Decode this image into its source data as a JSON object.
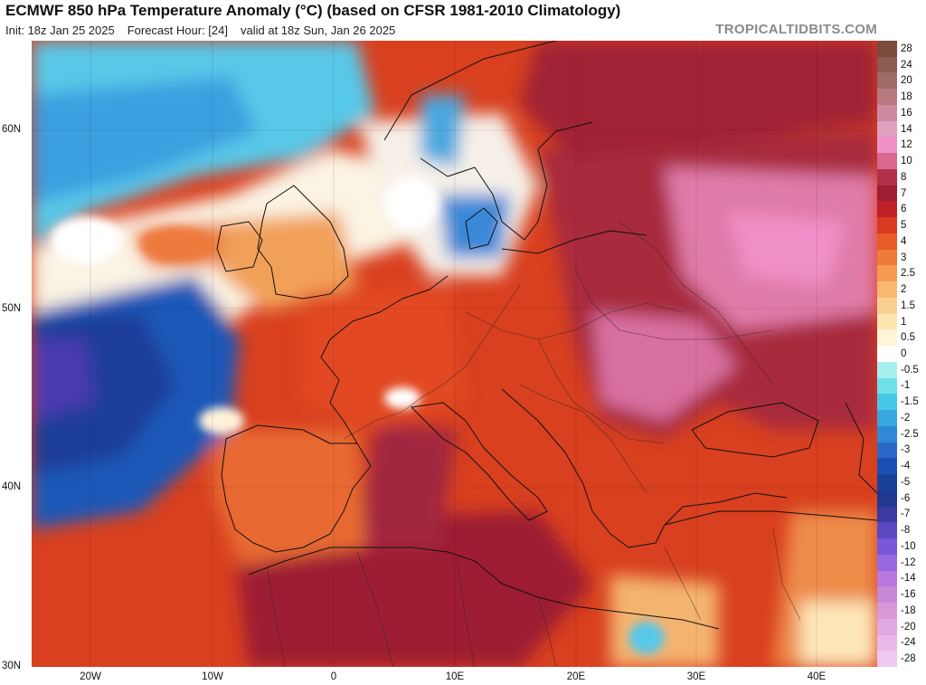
{
  "header": {
    "title": "ECMWF 850 hPa Temperature Anomaly (°C) (based on CFSR 1981-2010 Climatology)",
    "init": "Init: 18z Jan 25 2025",
    "forecast_hour": "Forecast Hour: [24]",
    "valid": "valid at 18z Sun, Jan 26 2025",
    "brand": "TROPICALTIDBITS.COM"
  },
  "map": {
    "region": "Europe / North Africa",
    "lat_labels": [
      "60N",
      "50N",
      "40N",
      "30N"
    ],
    "lat_values": [
      60,
      50,
      40,
      30
    ],
    "lon_labels": [
      "20W",
      "10W",
      "0",
      "10E",
      "20E",
      "30E",
      "40E"
    ],
    "lon_values": [
      -20,
      -10,
      0,
      10,
      20,
      30,
      40
    ]
  },
  "legend": {
    "items": [
      {
        "label": "28",
        "color": "#7a4a3a"
      },
      {
        "label": "24",
        "color": "#8c5a50"
      },
      {
        "label": "20",
        "color": "#a06a66"
      },
      {
        "label": "18",
        "color": "#b87a80"
      },
      {
        "label": "16",
        "color": "#cc8aa0"
      },
      {
        "label": "14",
        "color": "#e0a0c0"
      },
      {
        "label": "12",
        "color": "#f090c8"
      },
      {
        "label": "10",
        "color": "#d86890"
      },
      {
        "label": "8",
        "color": "#b03048"
      },
      {
        "label": "7",
        "color": "#a01c30"
      },
      {
        "label": "6",
        "color": "#c02028"
      },
      {
        "label": "5",
        "color": "#d83a20"
      },
      {
        "label": "4",
        "color": "#e85a28"
      },
      {
        "label": "3",
        "color": "#f07a38"
      },
      {
        "label": "2.5",
        "color": "#f59a50"
      },
      {
        "label": "2",
        "color": "#f8b870"
      },
      {
        "label": "1.5",
        "color": "#fad090"
      },
      {
        "label": "1",
        "color": "#fce4b0"
      },
      {
        "label": "0.5",
        "color": "#fef4d8"
      },
      {
        "label": "0",
        "color": "#ffffff"
      },
      {
        "label": "-0.5",
        "color": "#a8f0f0"
      },
      {
        "label": "-1",
        "color": "#70e0e8"
      },
      {
        "label": "-1.5",
        "color": "#48c8e8"
      },
      {
        "label": "-2",
        "color": "#38a8e0"
      },
      {
        "label": "-2.5",
        "color": "#3088d8"
      },
      {
        "label": "-3",
        "color": "#2c68c8"
      },
      {
        "label": "-4",
        "color": "#1c50b0"
      },
      {
        "label": "-5",
        "color": "#184098"
      },
      {
        "label": "-6",
        "color": "#203890"
      },
      {
        "label": "-7",
        "color": "#3a3aa0"
      },
      {
        "label": "-8",
        "color": "#5a48c0"
      },
      {
        "label": "-10",
        "color": "#7858d8"
      },
      {
        "label": "-12",
        "color": "#9868e0"
      },
      {
        "label": "-14",
        "color": "#b878e0"
      },
      {
        "label": "-16",
        "color": "#c888d8"
      },
      {
        "label": "-18",
        "color": "#d898d8"
      },
      {
        "label": "-20",
        "color": "#e0a8e0"
      },
      {
        "label": "-24",
        "color": "#eab8e8"
      },
      {
        "label": "-28",
        "color": "#f0c8f0"
      }
    ]
  }
}
